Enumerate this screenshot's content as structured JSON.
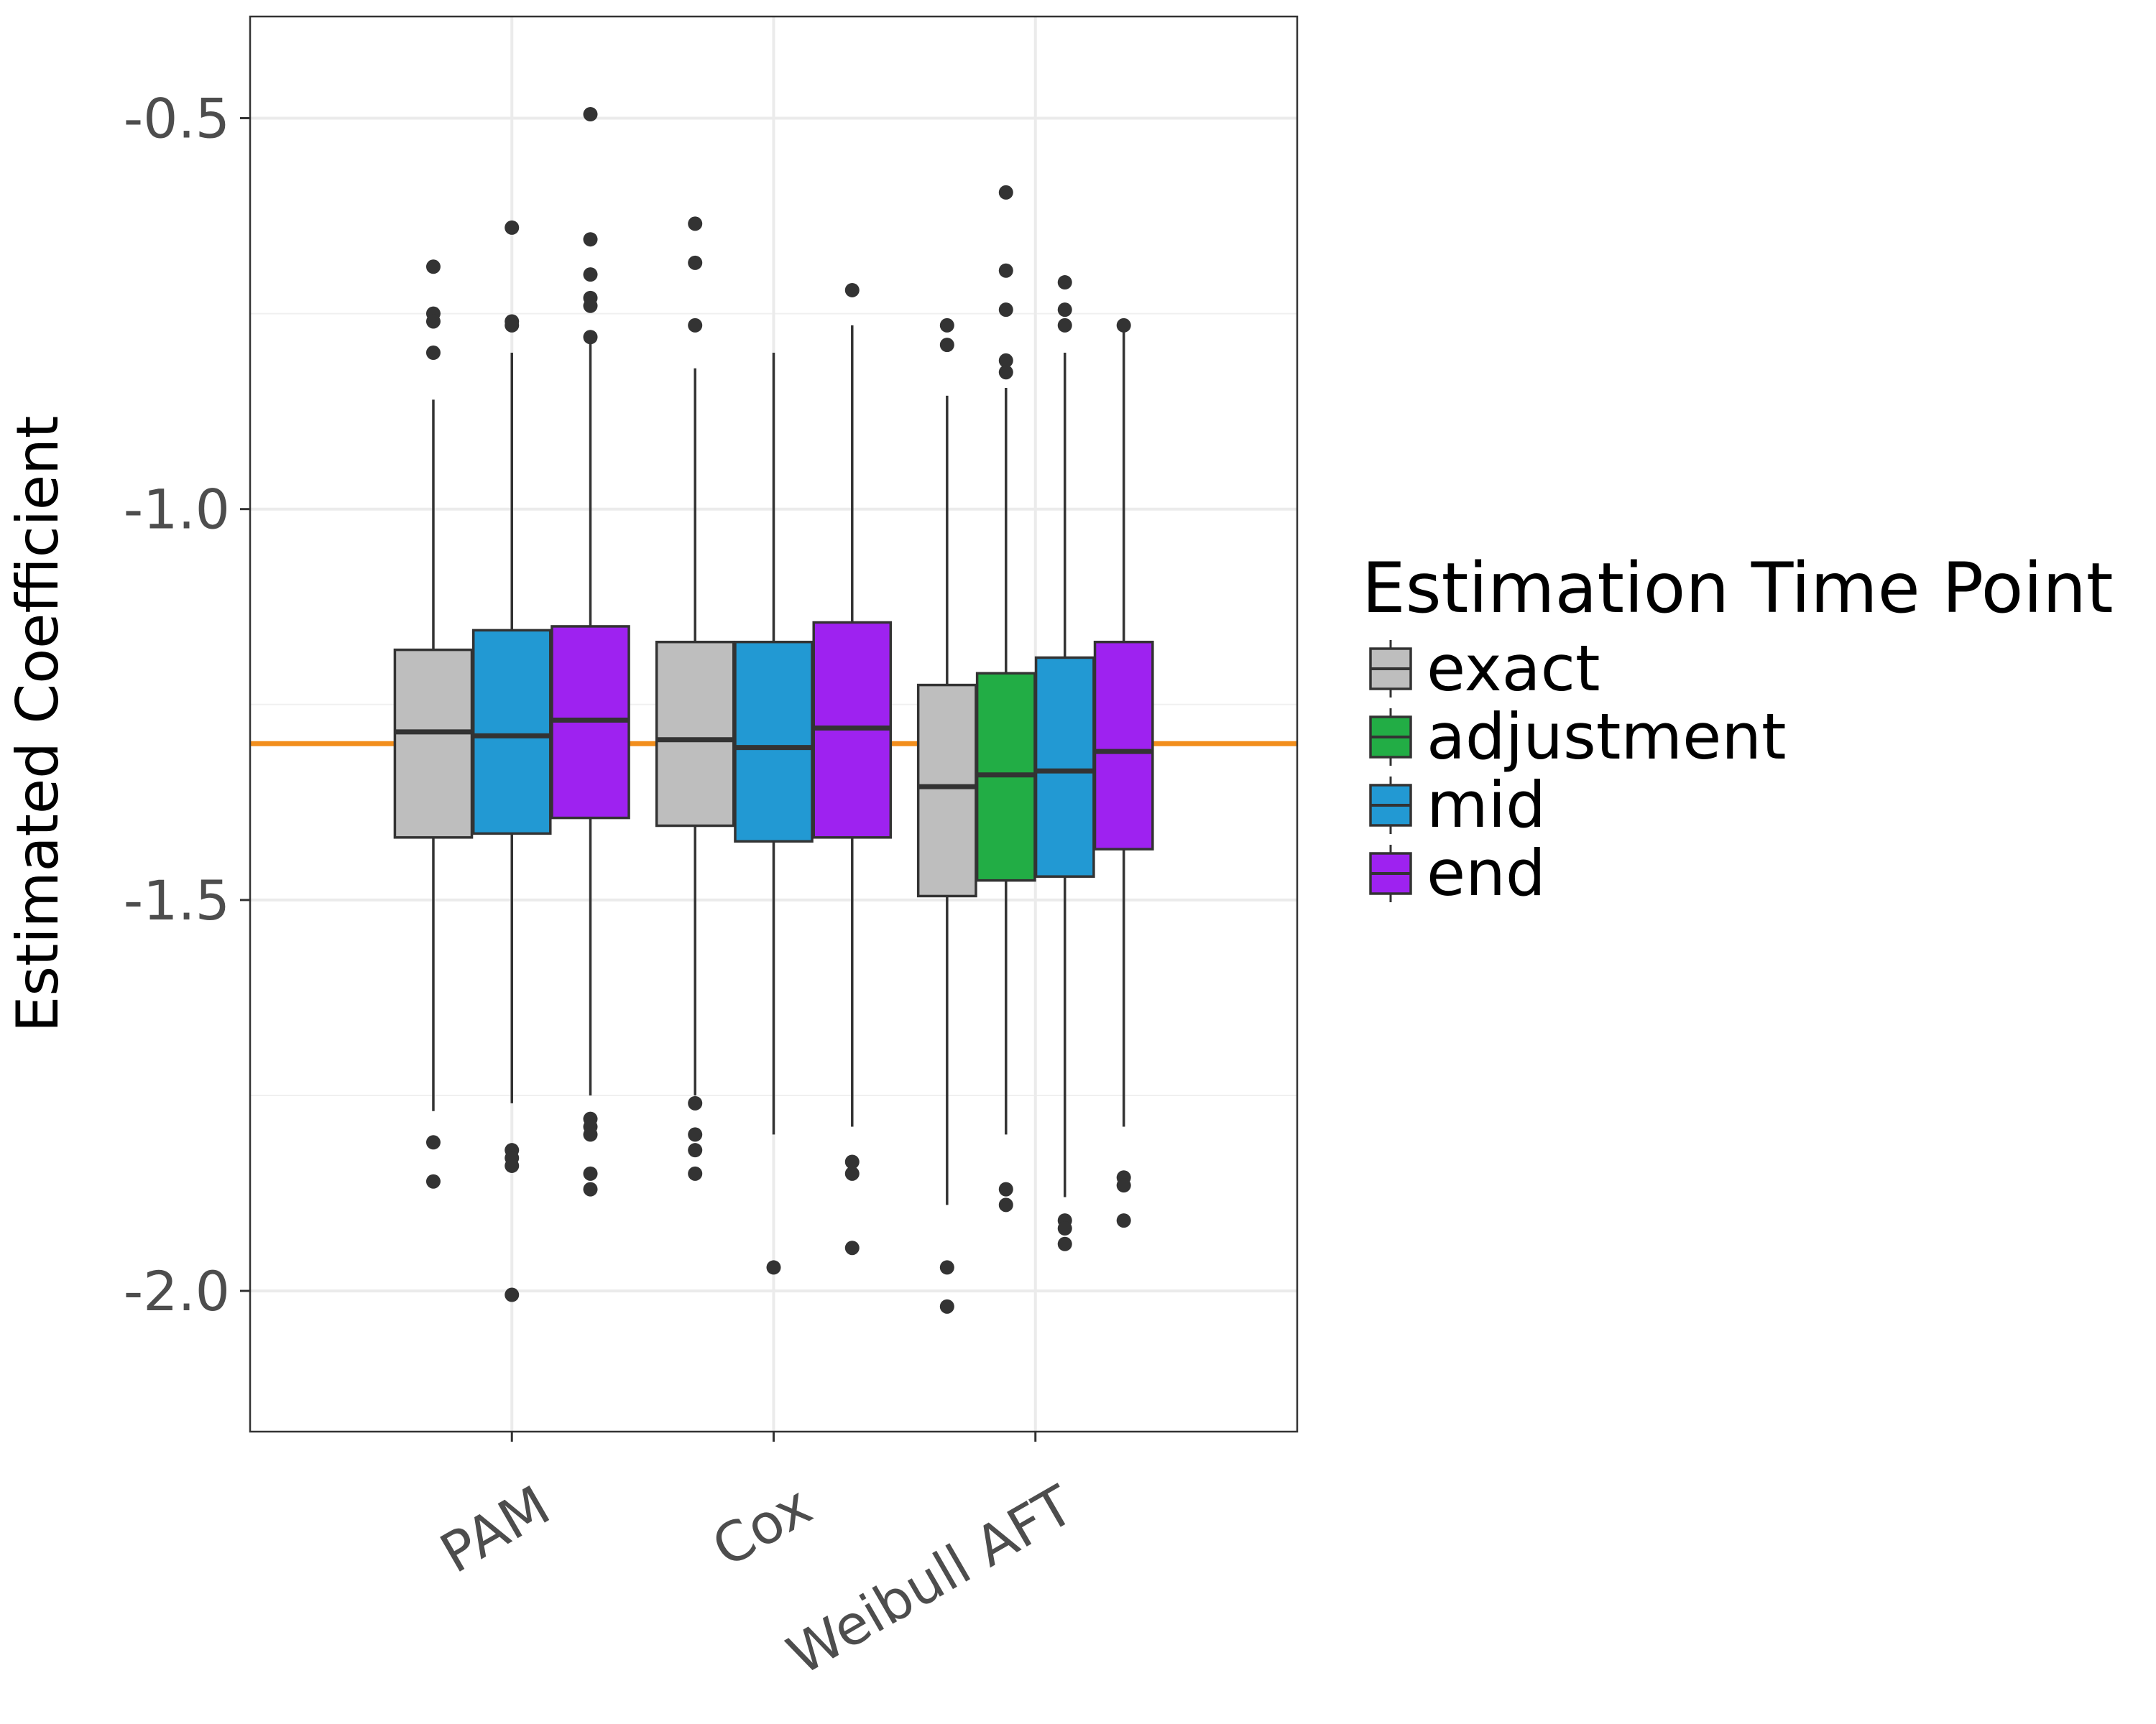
{
  "chart_data": {
    "type": "boxplot",
    "ylabel": "Estimated Coefficient",
    "ylim": [
      -2.18,
      -0.37
    ],
    "yticks": [
      -2.0,
      -1.5,
      -1.0,
      -0.5
    ],
    "ytick_labels": [
      "-2.0",
      "-1.5",
      "-1.0",
      "-0.5"
    ],
    "grid": true,
    "reference_line": {
      "y": -1.3,
      "color": "#f28e1c"
    },
    "categories": [
      "PAM",
      "Cox",
      "Weibull AFT"
    ],
    "legend": {
      "title": "Estimation Time Point",
      "position": "right",
      "entries": [
        {
          "label": "exact",
          "color": "#bebebe"
        },
        {
          "label": "adjustment",
          "color": "#22ad45"
        },
        {
          "label": "mid",
          "color": "#2299d3"
        },
        {
          "label": "end",
          "color": "#9e22f0"
        }
      ]
    },
    "groups": [
      {
        "category": "PAM",
        "boxes": [
          {
            "series": "exact",
            "whisker_low": -1.77,
            "q1": -1.42,
            "median": -1.285,
            "q3": -1.18,
            "whisker_high": -0.86,
            "outliers": [
              -0.69,
              -0.75,
              -0.76,
              -0.8,
              -1.81,
              -1.86
            ]
          },
          {
            "series": "mid",
            "whisker_low": -1.76,
            "q1": -1.415,
            "median": -1.29,
            "q3": -1.155,
            "whisker_high": -0.8,
            "outliers": [
              -0.64,
              -0.76,
              -0.765,
              -1.82,
              -1.83,
              -1.84,
              -2.005
            ]
          },
          {
            "series": "end",
            "whisker_low": -1.75,
            "q1": -1.395,
            "median": -1.27,
            "q3": -1.15,
            "whisker_high": -0.785,
            "outliers": [
              -0.495,
              -0.655,
              -0.7,
              -0.73,
              -0.74,
              -0.78,
              -1.78,
              -1.79,
              -1.8,
              -1.85,
              -1.87
            ]
          }
        ]
      },
      {
        "category": "Cox",
        "boxes": [
          {
            "series": "exact",
            "whisker_low": -1.75,
            "q1": -1.405,
            "median": -1.295,
            "q3": -1.17,
            "whisker_high": -0.82,
            "outliers": [
              -0.635,
              -0.685,
              -0.765,
              -1.76,
              -1.8,
              -1.82,
              -1.85
            ]
          },
          {
            "series": "mid",
            "whisker_low": -1.8,
            "q1": -1.425,
            "median": -1.305,
            "q3": -1.17,
            "whisker_high": -0.8,
            "outliers": [
              -1.97
            ]
          },
          {
            "series": "end",
            "whisker_low": -1.79,
            "q1": -1.42,
            "median": -1.28,
            "q3": -1.145,
            "whisker_high": -0.765,
            "outliers": [
              -0.72,
              -1.835,
              -1.85,
              -1.945
            ]
          }
        ]
      },
      {
        "category": "Weibull AFT",
        "boxes": [
          {
            "series": "exact",
            "whisker_low": -1.89,
            "q1": -1.495,
            "median": -1.355,
            "q3": -1.225,
            "whisker_high": -0.855,
            "outliers": [
              -0.765,
              -0.79,
              -1.97,
              -2.02
            ]
          },
          {
            "series": "adjustment",
            "whisker_low": -1.8,
            "q1": -1.475,
            "median": -1.34,
            "q3": -1.21,
            "whisker_high": -0.845,
            "outliers": [
              -0.595,
              -0.695,
              -0.745,
              -0.81,
              -0.825,
              -1.87,
              -1.89
            ]
          },
          {
            "series": "mid",
            "whisker_low": -1.88,
            "q1": -1.47,
            "median": -1.335,
            "q3": -1.19,
            "whisker_high": -0.8,
            "outliers": [
              -0.71,
              -0.745,
              -0.765,
              -1.91,
              -1.92,
              -1.94
            ]
          },
          {
            "series": "end",
            "whisker_low": -1.79,
            "q1": -1.435,
            "median": -1.31,
            "q3": -1.17,
            "whisker_high": -0.77,
            "outliers": [
              -0.765,
              -1.855,
              -1.865,
              -1.91
            ]
          }
        ]
      }
    ]
  }
}
